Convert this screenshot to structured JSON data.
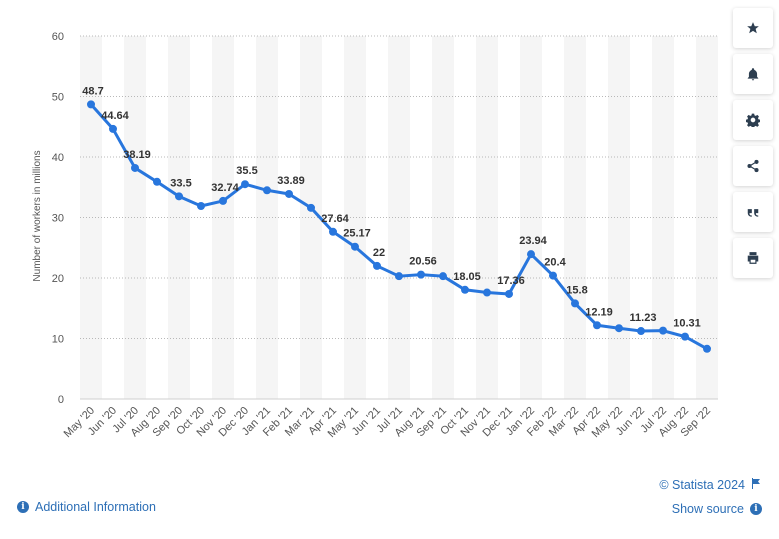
{
  "chart_data": {
    "type": "line",
    "ylabel": "Number of workers in millions",
    "ylim": [
      0,
      60
    ],
    "yticks": [
      0,
      10,
      20,
      30,
      40,
      50,
      60
    ],
    "grid": true,
    "categories": [
      "May '20",
      "Jun '20",
      "Jul '20",
      "Aug '20",
      "Sep '20",
      "Oct '20",
      "Nov '20",
      "Dec '20",
      "Jan '21",
      "Feb '21",
      "Mar '21",
      "Apr '21",
      "May '21",
      "Jun '21",
      "Jul '21",
      "Aug '21",
      "Sep '21",
      "Oct '21",
      "Nov '21",
      "Dec '21",
      "Jan '22",
      "Feb '22",
      "Mar '22",
      "Apr '22",
      "May '22",
      "Jun '22",
      "Jul '22",
      "Aug '22",
      "Sep '22"
    ],
    "series": [
      {
        "values": [
          48.7,
          44.64,
          38.19,
          35.9,
          33.5,
          31.9,
          32.74,
          35.5,
          34.5,
          33.89,
          31.6,
          27.64,
          25.17,
          22,
          20.3,
          20.56,
          20.3,
          18.05,
          17.6,
          17.36,
          23.94,
          20.4,
          15.8,
          12.19,
          11.7,
          11.23,
          11.3,
          10.31,
          8.3
        ],
        "labels": [
          "48.7",
          "44.64",
          "38.19",
          "",
          "33.5",
          "",
          "32.74",
          "35.5",
          "",
          "33.89",
          "",
          "27.64",
          "25.17",
          "22",
          "",
          "20.56",
          "",
          "18.05",
          "",
          "17.36",
          "23.94",
          "20.4",
          "15.8",
          "12.19",
          "",
          "11.23",
          "",
          "10.31",
          ""
        ],
        "color": "#2876dd"
      }
    ]
  },
  "toolbar": {
    "icons": [
      "star-icon",
      "bell-icon",
      "gear-icon",
      "share-icon",
      "quote-icon",
      "print-icon"
    ]
  },
  "footer": {
    "additional_info": "Additional Information",
    "copyright": "© Statista 2024",
    "show_source": "Show source"
  },
  "colors": {
    "accent": "#2d6fb6",
    "line": "#2876dd"
  }
}
